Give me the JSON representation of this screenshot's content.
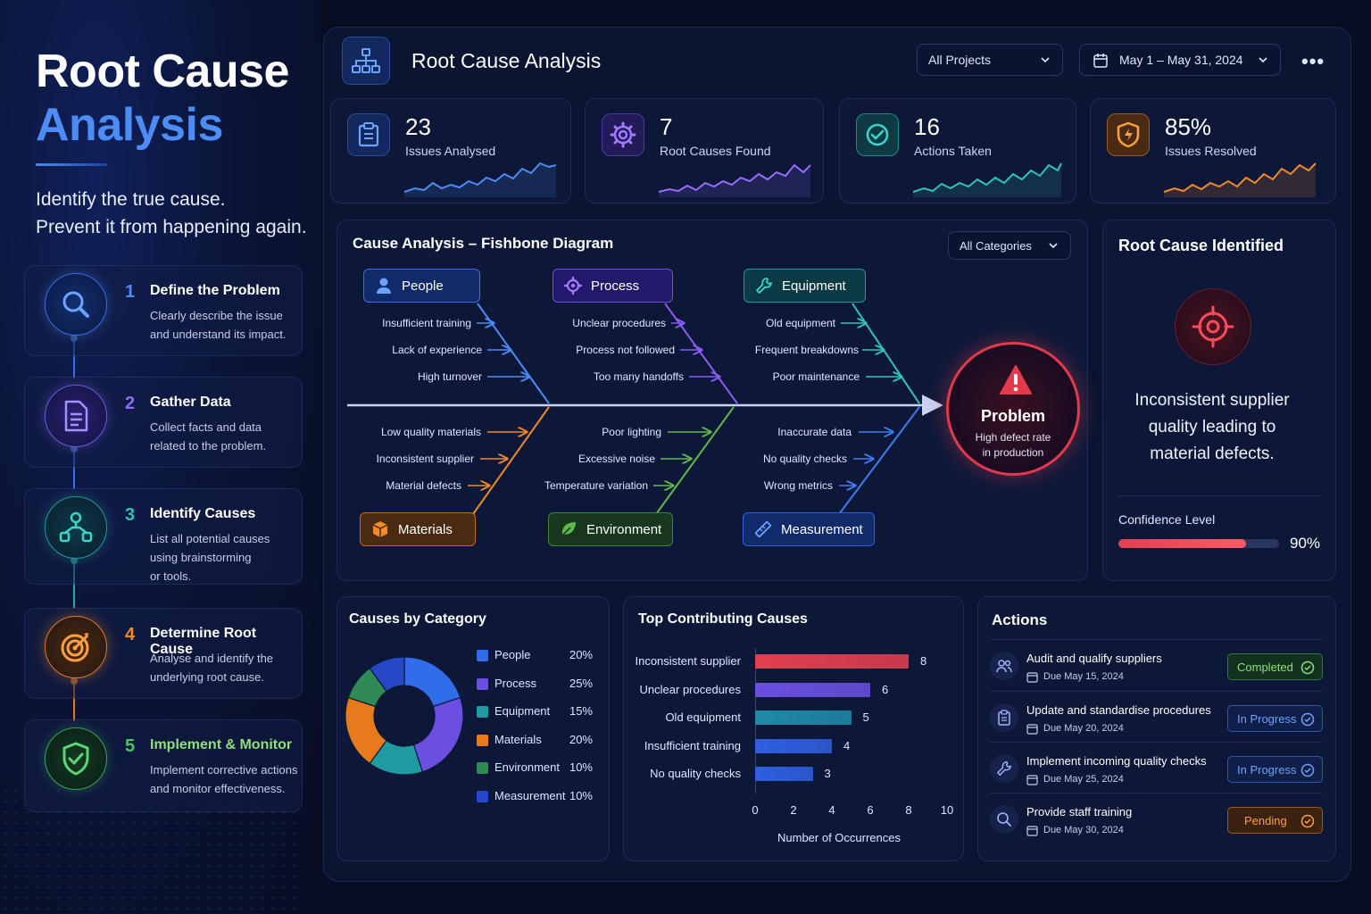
{
  "hero": {
    "title_line1": "Root Cause",
    "title_line2": "Analysis",
    "tagline_line1": "Identify the true cause.",
    "tagline_line2": "Prevent it from happening again."
  },
  "steps": [
    {
      "num": "1",
      "title": "Define the Problem",
      "desc1": "Clearly describe the issue",
      "desc2": "and understand its impact.",
      "desc3": "",
      "icon": "search-icon",
      "color": "#4d8cf5"
    },
    {
      "num": "2",
      "title": "Gather Data",
      "desc1": "Collect facts and data",
      "desc2": "related to the problem.",
      "desc3": "",
      "icon": "document-icon",
      "color": "#8a6df0"
    },
    {
      "num": "3",
      "title": "Identify Causes",
      "desc1": "List all potential causes",
      "desc2": "using brainstorming",
      "desc3": "or tools.",
      "icon": "network-icon",
      "color": "#2fc4b8"
    },
    {
      "num": "4",
      "title": "Determine Root Cause",
      "desc1": "Analyse and identify the",
      "desc2": "underlying root cause.",
      "desc3": "",
      "icon": "target-icon",
      "color": "#f08a2a"
    },
    {
      "num": "5",
      "title": "Implement & Monitor",
      "desc1": "Implement corrective actions",
      "desc2": "and monitor effectiveness.",
      "desc3": "",
      "icon": "shield-check-icon",
      "color": "#4cc46a"
    }
  ],
  "header": {
    "title": "Root Cause Analysis",
    "project_filter": "All Projects",
    "date_range": "May 1 – May 31, 2024",
    "more_label": "•••"
  },
  "kpis": [
    {
      "value": "23",
      "label": "Issues Analysed",
      "icon": "clipboard-icon",
      "color": "#4d8cf5"
    },
    {
      "value": "7",
      "label": "Root Causes Found",
      "icon": "gear-icon",
      "color": "#8a5cf5"
    },
    {
      "value": "16",
      "label": "Actions Taken",
      "icon": "check-circle-icon",
      "color": "#2fc4b8"
    },
    {
      "value": "85%",
      "label": "Issues Resolved",
      "icon": "shield-icon",
      "color": "#f08a2a"
    }
  ],
  "fishbone": {
    "title": "Cause Analysis – Fishbone Diagram",
    "filter": "All Categories",
    "categories": {
      "people": {
        "label": "People",
        "causes": [
          "Insufficient training",
          "Lack of experience",
          "High turnover"
        ],
        "color": "#4d8cf5"
      },
      "process": {
        "label": "Process",
        "causes": [
          "Unclear procedures",
          "Process not followed",
          "Too many handoffs"
        ],
        "color": "#8a5cf5"
      },
      "equipment": {
        "label": "Equipment",
        "causes": [
          "Old equipment",
          "Frequent breakdowns",
          "Poor maintenance"
        ],
        "color": "#2fc4b8"
      },
      "materials": {
        "label": "Materials",
        "causes": [
          "Low quality materials",
          "Inconsistent supplier",
          "Material defects"
        ],
        "color": "#f08a2a"
      },
      "environment": {
        "label": "Environment",
        "causes": [
          "Poor lighting",
          "Excessive noise",
          "Temperature variation"
        ],
        "color": "#5fb84a"
      },
      "measurement": {
        "label": "Measurement",
        "causes": [
          "Inaccurate data",
          "No quality checks",
          "Wrong metrics"
        ],
        "color": "#3f7bf0"
      }
    },
    "problem": {
      "title": "Problem",
      "desc_line1": "High defect rate",
      "desc_line2": "in production"
    }
  },
  "root_cause": {
    "title": "Root Cause Identified",
    "text_line1": "Inconsistent supplier",
    "text_line2": "quality leading to",
    "text_line3": "material defects.",
    "confidence_label": "Confidence Level",
    "confidence_value": 90,
    "confidence_text": "90%"
  },
  "causes_by_category": {
    "title": "Causes by Category"
  },
  "top_causes": {
    "title": "Top Contributing Causes",
    "xlabel": "Number of Occurrences",
    "ticks": [
      "0",
      "2",
      "4",
      "6",
      "8",
      "10"
    ]
  },
  "chart_data": [
    {
      "type": "pie",
      "title": "Causes by Category",
      "categories": [
        "People",
        "Process",
        "Equipment",
        "Materials",
        "Environment",
        "Measurement"
      ],
      "values": [
        20,
        25,
        15,
        20,
        10,
        10
      ],
      "labels": [
        "20%",
        "25%",
        "15%",
        "20%",
        "10%",
        "10%"
      ],
      "colors": [
        "#2f6ee8",
        "#6a4fe0",
        "#1f9aa0",
        "#e87a1e",
        "#2f8a56",
        "#2547c8"
      ],
      "legend": "right"
    },
    {
      "type": "bar",
      "orientation": "horizontal",
      "title": "Top Contributing Causes",
      "categories": [
        "Inconsistent supplier",
        "Unclear procedures",
        "Old equipment",
        "Insufficient training",
        "No quality checks"
      ],
      "values": [
        8,
        6,
        5,
        4,
        3
      ],
      "colors": [
        "#e0404f",
        "#6a4fe0",
        "#1f8aa8",
        "#2f5fe0",
        "#2f5fe0"
      ],
      "xlabel": "Number of Occurrences",
      "xlim": [
        0,
        10
      ]
    }
  ],
  "actions": {
    "title": "Actions",
    "items": [
      {
        "title": "Audit and qualify suppliers",
        "due": "Due May 15, 2024",
        "status": "Completed",
        "icon": "users-icon",
        "status_color": "#4cc46a"
      },
      {
        "title": "Update and standardise procedures",
        "due": "Due May 20, 2024",
        "status": "In Progress",
        "icon": "clipboard-icon",
        "status_color": "#4d8cf5"
      },
      {
        "title": "Implement incoming quality checks",
        "due": "Due May 25, 2024",
        "status": "In Progress",
        "icon": "wrench-icon",
        "status_color": "#4d8cf5"
      },
      {
        "title": "Provide staff training",
        "due": "Due May 30, 2024",
        "status": "Pending",
        "icon": "search-icon",
        "status_color": "#f08a2a"
      }
    ]
  }
}
